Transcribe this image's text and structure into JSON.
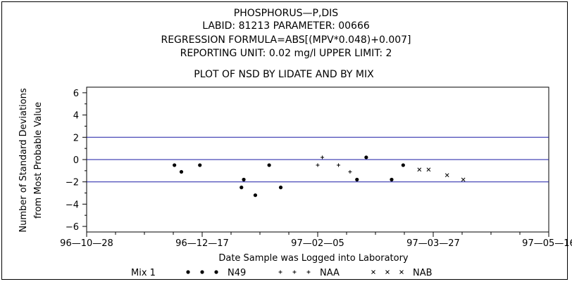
{
  "header": {
    "line1": "PHOSPHORUS—P,DIS",
    "line2": "LABID: 81213 PARAMETER: 00666",
    "line3": "REGRESSION FORMULA=ABS[(MPV*0.048)+0.007]",
    "line4": "REPORTING UNIT: 0.02 mg/l   UPPER LIMIT: 2",
    "subtitle": "PLOT OF NSD BY LIDATE AND BY MIX"
  },
  "chart_data": {
    "type": "scatter",
    "title": "PLOT OF NSD BY LIDATE AND BY MIX",
    "xlabel": "Date Sample was Logged into Laboratory",
    "ylabel_line1": "Number of Standard Deviations",
    "ylabel_line2": "from Most Probable Value",
    "xlim": [
      "1996-10-28",
      "1997-05-16"
    ],
    "ylim": [
      -6.5,
      6.5
    ],
    "xtick_labels": [
      "96—10—28",
      "96—12—17",
      "97—02—05",
      "97—03—27",
      "97—05—16"
    ],
    "xtick_dates": [
      "1996-10-28",
      "1996-12-17",
      "1997-02-05",
      "1997-03-27",
      "1997-05-16"
    ],
    "ytick_labels": [
      "6",
      "4",
      "2",
      "0",
      "−2",
      "−4",
      "−6"
    ],
    "ytick_values": [
      6,
      4,
      2,
      0,
      -2,
      -4,
      -6
    ],
    "reference_lines": [
      2,
      0,
      -2
    ],
    "reference_color": "#1a1aa6",
    "legend": {
      "title": "Mix 1",
      "placement": "bottom"
    },
    "series": [
      {
        "name": "N49",
        "marker": "dot",
        "points": [
          {
            "x": "1996-12-05",
            "y": -0.5
          },
          {
            "x": "1996-12-08",
            "y": -1.1
          },
          {
            "x": "1996-12-16",
            "y": -0.5
          },
          {
            "x": "1997-01-03",
            "y": -2.5
          },
          {
            "x": "1997-01-04",
            "y": -1.8
          },
          {
            "x": "1997-01-09",
            "y": -3.2
          },
          {
            "x": "1997-01-15",
            "y": -0.5
          },
          {
            "x": "1997-01-20",
            "y": -2.5
          },
          {
            "x": "1997-02-22",
            "y": -1.8
          },
          {
            "x": "1997-02-26",
            "y": 0.2
          },
          {
            "x": "1997-03-09",
            "y": -1.8
          },
          {
            "x": "1997-03-14",
            "y": -0.5
          }
        ]
      },
      {
        "name": "NAA",
        "marker": "plus",
        "points": [
          {
            "x": "1997-02-05",
            "y": -0.5
          },
          {
            "x": "1997-02-07",
            "y": 0.2
          },
          {
            "x": "1997-02-14",
            "y": -0.5
          },
          {
            "x": "1997-02-19",
            "y": -1.1
          }
        ]
      },
      {
        "name": "NAB",
        "marker": "cross",
        "points": [
          {
            "x": "1997-03-21",
            "y": -0.9
          },
          {
            "x": "1997-03-25",
            "y": -0.9
          },
          {
            "x": "1997-04-02",
            "y": -1.4
          },
          {
            "x": "1997-04-09",
            "y": -1.8
          }
        ]
      }
    ]
  }
}
